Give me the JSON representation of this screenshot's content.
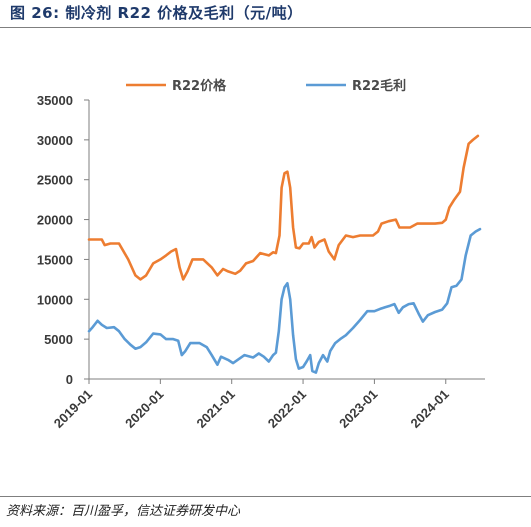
{
  "figure": {
    "title": "图 26:  制冷剂 R22 价格及毛利（元/吨）",
    "source": "资料来源：百川盈孚，信达证券研发中心"
  },
  "chart_data": {
    "type": "line",
    "title": "",
    "xlabel": "",
    "ylabel": "",
    "ylim": [
      0,
      35000
    ],
    "yticks": [
      0,
      5000,
      10000,
      15000,
      20000,
      25000,
      30000,
      35000
    ],
    "ytick_labels": [
      "0",
      "5000",
      "10000",
      "15000",
      "20000",
      "25000",
      "30000",
      "35000"
    ],
    "xlim": [
      2019.0,
      2024.55
    ],
    "xticks": [
      2019,
      2020,
      2021,
      2022,
      2023,
      2024
    ],
    "xtick_labels": [
      "2019-01",
      "2020-01",
      "2021-01",
      "2022-01",
      "2023-01",
      "2024-01"
    ],
    "grid": false,
    "legend_position": "top",
    "series": [
      {
        "name": "R22价格",
        "color": "#ed7d31",
        "points": [
          [
            2019.0,
            17500
          ],
          [
            2019.18,
            17500
          ],
          [
            2019.22,
            16800
          ],
          [
            2019.3,
            17000
          ],
          [
            2019.42,
            17000
          ],
          [
            2019.55,
            15000
          ],
          [
            2019.65,
            13000
          ],
          [
            2019.72,
            12500
          ],
          [
            2019.8,
            13000
          ],
          [
            2019.9,
            14500
          ],
          [
            2020.0,
            15000
          ],
          [
            2020.08,
            15500
          ],
          [
            2020.15,
            16000
          ],
          [
            2020.22,
            16300
          ],
          [
            2020.27,
            14000
          ],
          [
            2020.32,
            12500
          ],
          [
            2020.38,
            13500
          ],
          [
            2020.45,
            15000
          ],
          [
            2020.6,
            15000
          ],
          [
            2020.72,
            14000
          ],
          [
            2020.8,
            13000
          ],
          [
            2020.88,
            13800
          ],
          [
            2020.95,
            13500
          ],
          [
            2021.05,
            13200
          ],
          [
            2021.12,
            13600
          ],
          [
            2021.2,
            14500
          ],
          [
            2021.3,
            14800
          ],
          [
            2021.4,
            15800
          ],
          [
            2021.52,
            15500
          ],
          [
            2021.58,
            15900
          ],
          [
            2021.62,
            15800
          ],
          [
            2021.67,
            18000
          ],
          [
            2021.7,
            24000
          ],
          [
            2021.74,
            25800
          ],
          [
            2021.78,
            26000
          ],
          [
            2021.82,
            24000
          ],
          [
            2021.86,
            19000
          ],
          [
            2021.9,
            16500
          ],
          [
            2021.95,
            16400
          ],
          [
            2022.0,
            17000
          ],
          [
            2022.08,
            17000
          ],
          [
            2022.12,
            17800
          ],
          [
            2022.16,
            16500
          ],
          [
            2022.22,
            17200
          ],
          [
            2022.3,
            17500
          ],
          [
            2022.36,
            16000
          ],
          [
            2022.44,
            15000
          ],
          [
            2022.5,
            16800
          ],
          [
            2022.6,
            18000
          ],
          [
            2022.7,
            17800
          ],
          [
            2022.8,
            18000
          ],
          [
            2022.9,
            18000
          ],
          [
            2022.98,
            18000
          ],
          [
            2023.05,
            18500
          ],
          [
            2023.1,
            19500
          ],
          [
            2023.2,
            19800
          ],
          [
            2023.3,
            20000
          ],
          [
            2023.35,
            19000
          ],
          [
            2023.5,
            19000
          ],
          [
            2023.6,
            19500
          ],
          [
            2023.7,
            19500
          ],
          [
            2023.85,
            19500
          ],
          [
            2023.95,
            19600
          ],
          [
            2024.0,
            20000
          ],
          [
            2024.05,
            21500
          ],
          [
            2024.12,
            22500
          ],
          [
            2024.2,
            23500
          ],
          [
            2024.25,
            26500
          ],
          [
            2024.32,
            29500
          ],
          [
            2024.38,
            30000
          ],
          [
            2024.45,
            30500
          ]
        ]
      },
      {
        "name": "R22毛利",
        "color": "#5b9bd5",
        "points": [
          [
            2019.0,
            6000
          ],
          [
            2019.05,
            6500
          ],
          [
            2019.12,
            7300
          ],
          [
            2019.18,
            6800
          ],
          [
            2019.25,
            6400
          ],
          [
            2019.35,
            6500
          ],
          [
            2019.42,
            6000
          ],
          [
            2019.5,
            5000
          ],
          [
            2019.58,
            4300
          ],
          [
            2019.65,
            3800
          ],
          [
            2019.72,
            4000
          ],
          [
            2019.8,
            4600
          ],
          [
            2019.9,
            5700
          ],
          [
            2020.0,
            5600
          ],
          [
            2020.08,
            5000
          ],
          [
            2020.18,
            5000
          ],
          [
            2020.25,
            4800
          ],
          [
            2020.3,
            3000
          ],
          [
            2020.35,
            3500
          ],
          [
            2020.42,
            4500
          ],
          [
            2020.55,
            4500
          ],
          [
            2020.65,
            4000
          ],
          [
            2020.72,
            3000
          ],
          [
            2020.8,
            1800
          ],
          [
            2020.85,
            2800
          ],
          [
            2020.95,
            2400
          ],
          [
            2021.02,
            2000
          ],
          [
            2021.1,
            2500
          ],
          [
            2021.18,
            3000
          ],
          [
            2021.3,
            2700
          ],
          [
            2021.38,
            3200
          ],
          [
            2021.45,
            2800
          ],
          [
            2021.52,
            2200
          ],
          [
            2021.58,
            3000
          ],
          [
            2021.62,
            3300
          ],
          [
            2021.66,
            6000
          ],
          [
            2021.7,
            10000
          ],
          [
            2021.74,
            11500
          ],
          [
            2021.78,
            12000
          ],
          [
            2021.82,
            10000
          ],
          [
            2021.86,
            5500
          ],
          [
            2021.9,
            2500
          ],
          [
            2021.94,
            1300
          ],
          [
            2022.0,
            1500
          ],
          [
            2022.05,
            2200
          ],
          [
            2022.1,
            3000
          ],
          [
            2022.13,
            1000
          ],
          [
            2022.18,
            800
          ],
          [
            2022.22,
            2000
          ],
          [
            2022.28,
            3000
          ],
          [
            2022.34,
            2200
          ],
          [
            2022.38,
            3500
          ],
          [
            2022.45,
            4500
          ],
          [
            2022.52,
            5000
          ],
          [
            2022.6,
            5500
          ],
          [
            2022.7,
            6400
          ],
          [
            2022.8,
            7400
          ],
          [
            2022.9,
            8500
          ],
          [
            2023.0,
            8500
          ],
          [
            2023.08,
            8800
          ],
          [
            2023.15,
            9000
          ],
          [
            2023.22,
            9200
          ],
          [
            2023.28,
            9400
          ],
          [
            2023.34,
            8300
          ],
          [
            2023.4,
            9000
          ],
          [
            2023.48,
            9400
          ],
          [
            2023.55,
            9500
          ],
          [
            2023.62,
            8200
          ],
          [
            2023.68,
            7200
          ],
          [
            2023.75,
            8000
          ],
          [
            2023.85,
            8400
          ],
          [
            2023.95,
            8700
          ],
          [
            2024.02,
            9500
          ],
          [
            2024.08,
            11500
          ],
          [
            2024.15,
            11700
          ],
          [
            2024.22,
            12500
          ],
          [
            2024.28,
            15500
          ],
          [
            2024.35,
            18000
          ],
          [
            2024.42,
            18500
          ],
          [
            2024.48,
            18800
          ]
        ]
      }
    ]
  }
}
